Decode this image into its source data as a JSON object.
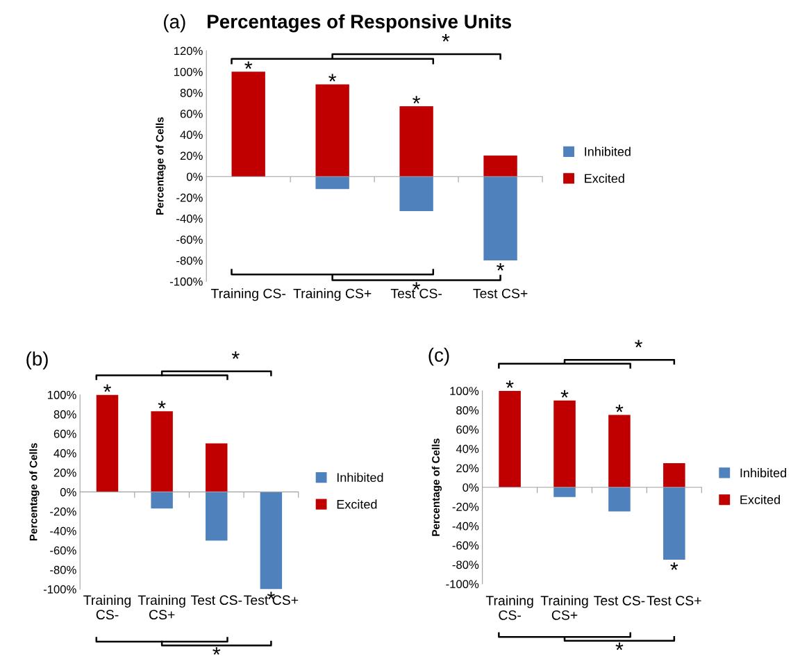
{
  "chart_data": [
    {
      "type": "bar",
      "title": "(a)",
      "subtitle": "Percentages of Responsive Units",
      "ylabel": "Percentage of Cells",
      "stacked": true,
      "legend": "right",
      "categories": [
        "Training CS-",
        "Training CS+",
        "Test CS-",
        "Test CS+"
      ],
      "series": [
        {
          "name": "Inhibited",
          "color": "#4f81bd",
          "values": [
            null,
            -12,
            -33,
            -80
          ]
        },
        {
          "name": "Excited",
          "color": "#c00000",
          "values": [
            100,
            88,
            67,
            20
          ]
        }
      ],
      "ylim": [
        -100,
        120
      ],
      "yticks": [
        {
          "value": -100,
          "label": "-100%"
        },
        {
          "value": -80,
          "label": "-80%"
        },
        {
          "value": -60,
          "label": "-60%"
        },
        {
          "value": -40,
          "label": "-40%"
        },
        {
          "value": -20,
          "label": "-20%"
        },
        {
          "value": 0,
          "label": "0%"
        },
        {
          "value": 20,
          "label": "20%"
        },
        {
          "value": 40,
          "label": "40%"
        },
        {
          "value": 60,
          "label": "60%"
        },
        {
          "value": 80,
          "label": "80%"
        },
        {
          "value": 100,
          "label": "100%"
        },
        {
          "value": 120,
          "label": "120%"
        }
      ],
      "annotations": [
        {
          "text": "*",
          "x": "Training CS-",
          "y": 100
        },
        {
          "text": "*",
          "x": "Training CS+",
          "y": 88
        },
        {
          "text": "*",
          "x": "Test CS-",
          "y": 67
        },
        {
          "text": "*",
          "x": "Test CS+",
          "y": -80
        },
        "*",
        "*"
      ]
    },
    {
      "type": "bar",
      "title": "(b)",
      "ylabel": "Percentage of Cells",
      "stacked": true,
      "legend": "right",
      "categories": [
        "Training CS-",
        "Training CS+",
        "Test CS-",
        "Test CS+"
      ],
      "series": [
        {
          "name": "Inhibited",
          "color": "#4f81bd",
          "values": [
            null,
            -17,
            -50,
            -100
          ]
        },
        {
          "name": "Excited",
          "color": "#c00000",
          "values": [
            100,
            83,
            50,
            null
          ]
        }
      ],
      "ylim": [
        -100,
        100
      ],
      "yticks": [
        {
          "value": -100,
          "label": "-100%"
        },
        {
          "value": -80,
          "label": "-80%"
        },
        {
          "value": -60,
          "label": "-60%"
        },
        {
          "value": -40,
          "label": "-40%"
        },
        {
          "value": -20,
          "label": "-20%"
        },
        {
          "value": 0,
          "label": "0%"
        },
        {
          "value": 20,
          "label": "20%"
        },
        {
          "value": 40,
          "label": "40%"
        },
        {
          "value": 60,
          "label": "60%"
        },
        {
          "value": 80,
          "label": "80%"
        },
        {
          "value": 100,
          "label": "100%"
        }
      ],
      "annotations": [
        {
          "text": "*",
          "x": "Training CS-",
          "y": 100
        },
        {
          "text": "*",
          "x": "Training CS+",
          "y": 83
        },
        {
          "text": "*",
          "x": "Test CS+",
          "y": -100
        },
        "*",
        "*"
      ]
    },
    {
      "type": "bar",
      "title": "(c)",
      "ylabel": "Percentage of Cells",
      "stacked": true,
      "legend": "right",
      "categories": [
        "Training CS-",
        "Training CS+",
        "Test CS-",
        "Test CS+"
      ],
      "series": [
        {
          "name": "Inhibited",
          "color": "#4f81bd",
          "values": [
            null,
            -10,
            -25,
            -75
          ]
        },
        {
          "name": "Excited",
          "color": "#c00000",
          "values": [
            100,
            90,
            75,
            25
          ]
        }
      ],
      "ylim": [
        -100,
        100
      ],
      "yticks": [
        {
          "value": -100,
          "label": "-100%"
        },
        {
          "value": -80,
          "label": "-80%"
        },
        {
          "value": -60,
          "label": "-60%"
        },
        {
          "value": -40,
          "label": "-40%"
        },
        {
          "value": -20,
          "label": "-20%"
        },
        {
          "value": 0,
          "label": "0%"
        },
        {
          "value": 20,
          "label": "20%"
        },
        {
          "value": 40,
          "label": "40%"
        },
        {
          "value": 60,
          "label": "60%"
        },
        {
          "value": 80,
          "label": "80%"
        },
        {
          "value": 100,
          "label": "100%"
        }
      ],
      "annotations": [
        {
          "text": "*",
          "x": "Training CS-",
          "y": 100
        },
        {
          "text": "*",
          "x": "Training CS+",
          "y": 90
        },
        {
          "text": "*",
          "x": "Test CS-",
          "y": 75
        },
        {
          "text": "*",
          "x": "Test CS+",
          "y": -75
        },
        "*",
        "*"
      ]
    }
  ]
}
